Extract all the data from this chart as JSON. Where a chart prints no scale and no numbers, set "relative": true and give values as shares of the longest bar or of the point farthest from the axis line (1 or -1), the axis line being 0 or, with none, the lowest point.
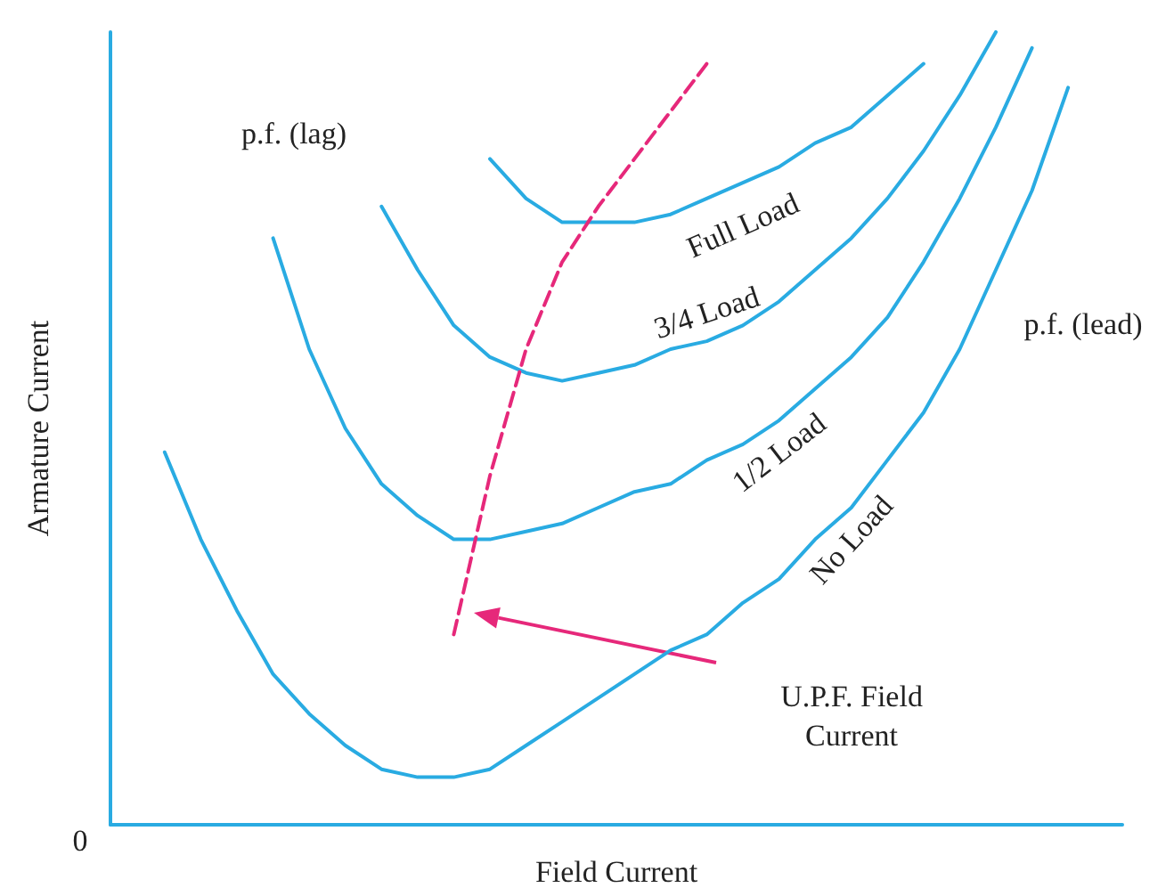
{
  "chart_data": {
    "type": "line",
    "relative": true,
    "xlabel": "Field Current",
    "ylabel": "Armature Current",
    "legend": false,
    "grid": false,
    "marker": "none",
    "line_style": "solid",
    "annotations": [
      "p.f. (lag)",
      "p.f. (lead)",
      "U.P.F. Field\nCurrent",
      "0"
    ],
    "categories": [
      null,
      null,
      null,
      null,
      null,
      null,
      null,
      null,
      null,
      null,
      null,
      null,
      null,
      null,
      null,
      null,
      null,
      null,
      null,
      null,
      null,
      null,
      null,
      null,
      null,
      null,
      null,
      null
    ],
    "series": [
      {
        "name": "No Load",
        "color": "#29abe2",
        "values": [
          null,
          0.47,
          0.36,
          0.27,
          0.19,
          0.14,
          0.1,
          0.07,
          0.06,
          0.06,
          0.07,
          0.1,
          0.13,
          0.16,
          0.19,
          0.22,
          0.24,
          0.28,
          0.31,
          0.36,
          0.4,
          0.46,
          0.52,
          0.6,
          0.7,
          0.8,
          0.93,
          null
        ]
      },
      {
        "name": "1/2 Load",
        "color": "#29abe2",
        "values": [
          null,
          null,
          null,
          null,
          0.74,
          0.6,
          0.5,
          0.43,
          0.39,
          0.36,
          0.36,
          0.37,
          0.38,
          0.4,
          0.42,
          0.43,
          0.46,
          0.48,
          0.51,
          0.55,
          0.59,
          0.64,
          0.71,
          0.79,
          0.88,
          0.98,
          null,
          null
        ]
      },
      {
        "name": "3/4 Load",
        "color": "#29abe2",
        "values": [
          null,
          null,
          null,
          null,
          null,
          null,
          null,
          0.78,
          0.7,
          0.63,
          0.59,
          0.57,
          0.56,
          0.57,
          0.58,
          0.6,
          0.61,
          0.63,
          0.66,
          0.7,
          0.74,
          0.79,
          0.85,
          0.92,
          1,
          null,
          null,
          null
        ]
      },
      {
        "name": "Full Load",
        "color": "#29abe2",
        "values": [
          null,
          null,
          null,
          null,
          null,
          null,
          null,
          null,
          null,
          null,
          0.84,
          0.79,
          0.76,
          0.76,
          0.76,
          0.77,
          0.79,
          0.81,
          0.83,
          0.86,
          0.88,
          0.92,
          0.96,
          null,
          null,
          null,
          null,
          null
        ]
      },
      {
        "color": "#e6287a",
        "line_style": "dashed",
        "values": [
          null,
          null,
          null,
          null,
          null,
          null,
          null,
          null,
          null,
          0.24,
          0.44,
          0.6,
          0.71,
          0.78,
          0.84,
          0.9,
          0.96,
          null,
          null,
          null,
          null,
          null,
          null,
          null,
          null,
          null,
          null,
          null
        ]
      }
    ]
  }
}
